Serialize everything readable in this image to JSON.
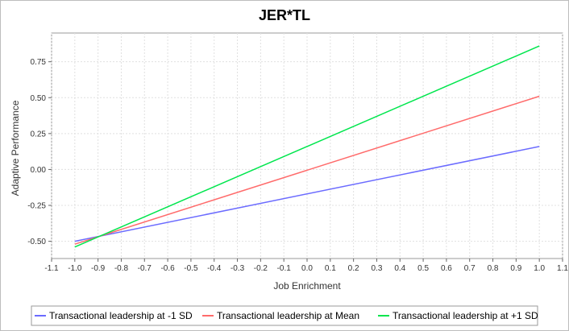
{
  "chart_data": {
    "type": "line",
    "title": "JER*TL",
    "xlabel": "Job Enrichment",
    "ylabel": "Adaptive Performance",
    "xlim": [
      -1.1,
      1.1
    ],
    "ylim": [
      -0.62,
      0.95
    ],
    "xticks": [
      "-1.1",
      "-1.0",
      "-0.9",
      "-0.8",
      "-0.7",
      "-0.6",
      "-0.5",
      "-0.4",
      "-0.3",
      "-0.2",
      "-0.1",
      "0.0",
      "0.1",
      "0.2",
      "0.3",
      "0.4",
      "0.5",
      "0.6",
      "0.7",
      "0.8",
      "0.9",
      "1.0",
      "1.1"
    ],
    "yticks": [
      "-0.50",
      "-0.25",
      "0.00",
      "0.25",
      "0.50",
      "0.75"
    ],
    "grid": true,
    "legend": "bottom",
    "series": [
      {
        "name": "Transactional leadership at -1 SD",
        "color": "#6b6bff",
        "x": [
          -1.0,
          1.0
        ],
        "y": [
          -0.5,
          0.16
        ]
      },
      {
        "name": "Transactional leadership at Mean",
        "color": "#ff6b6b",
        "x": [
          -1.0,
          1.0
        ],
        "y": [
          -0.52,
          0.51
        ]
      },
      {
        "name": "Transactional leadership at +1 SD",
        "color": "#00e64d",
        "x": [
          -1.0,
          1.0
        ],
        "y": [
          -0.54,
          0.86
        ]
      }
    ]
  }
}
